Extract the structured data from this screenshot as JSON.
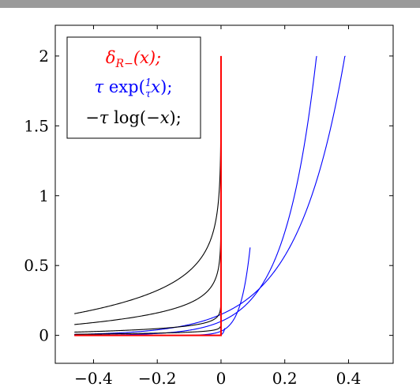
{
  "chart_data": {
    "type": "line",
    "title": "",
    "xlabel": "",
    "ylabel": "",
    "xlim": [
      -0.52,
      0.54
    ],
    "ylim": [
      -0.2,
      2.22
    ],
    "x_ticks": [
      -0.4,
      -0.2,
      0,
      0.2,
      0.4
    ],
    "x_tick_labels": [
      "−0.4",
      "−0.2",
      "0",
      "0.2",
      "0.4"
    ],
    "y_ticks": [
      0,
      0.5,
      1,
      1.5,
      2
    ],
    "y_tick_labels": [
      "0",
      "0.5",
      "1",
      "1.5",
      "2"
    ],
    "grid": false,
    "legend_position": "top-left",
    "legend": [
      {
        "label": "δR−(x);",
        "color": "#ff0000"
      },
      {
        "label": "τ exp(1/τ x);",
        "color": "#0000ff"
      },
      {
        "label": "−τ log(−x);",
        "color": "#000000"
      }
    ],
    "series": [
      {
        "family": "indicator",
        "color": "#ff0000",
        "x": [
          -0.46,
          -0.001,
          0,
          0
        ],
        "y": [
          0,
          0,
          0,
          2
        ]
      },
      {
        "family": "exp",
        "tau": 0.15,
        "color": "#0000ff",
        "x_range": [
          -0.46,
          0.46
        ]
      },
      {
        "family": "exp",
        "tau": 0.1,
        "color": "#0000ff",
        "x_range": [
          -0.46,
          0.3
        ]
      },
      {
        "family": "exp",
        "tau": 0.03,
        "color": "#0000ff",
        "x_range": [
          -0.46,
          0.0913
        ]
      },
      {
        "family": "exp",
        "tau": 0.005,
        "color": "#0000ff",
        "x_range": [
          -0.46,
          0.0116
        ]
      },
      {
        "family": "log",
        "tau": 0.2,
        "color": "#000000",
        "x_range": [
          -0.46,
          -5e-05
        ]
      },
      {
        "family": "log",
        "tau": 0.1,
        "color": "#000000",
        "x_range": [
          -0.46,
          -0.0001
        ]
      },
      {
        "family": "log",
        "tau": 0.03,
        "color": "#000000",
        "x_range": [
          -0.46,
          -0.0001
        ]
      },
      {
        "family": "log",
        "tau": 0.01,
        "color": "#000000",
        "x_range": [
          -0.46,
          -0.0001
        ]
      }
    ]
  }
}
